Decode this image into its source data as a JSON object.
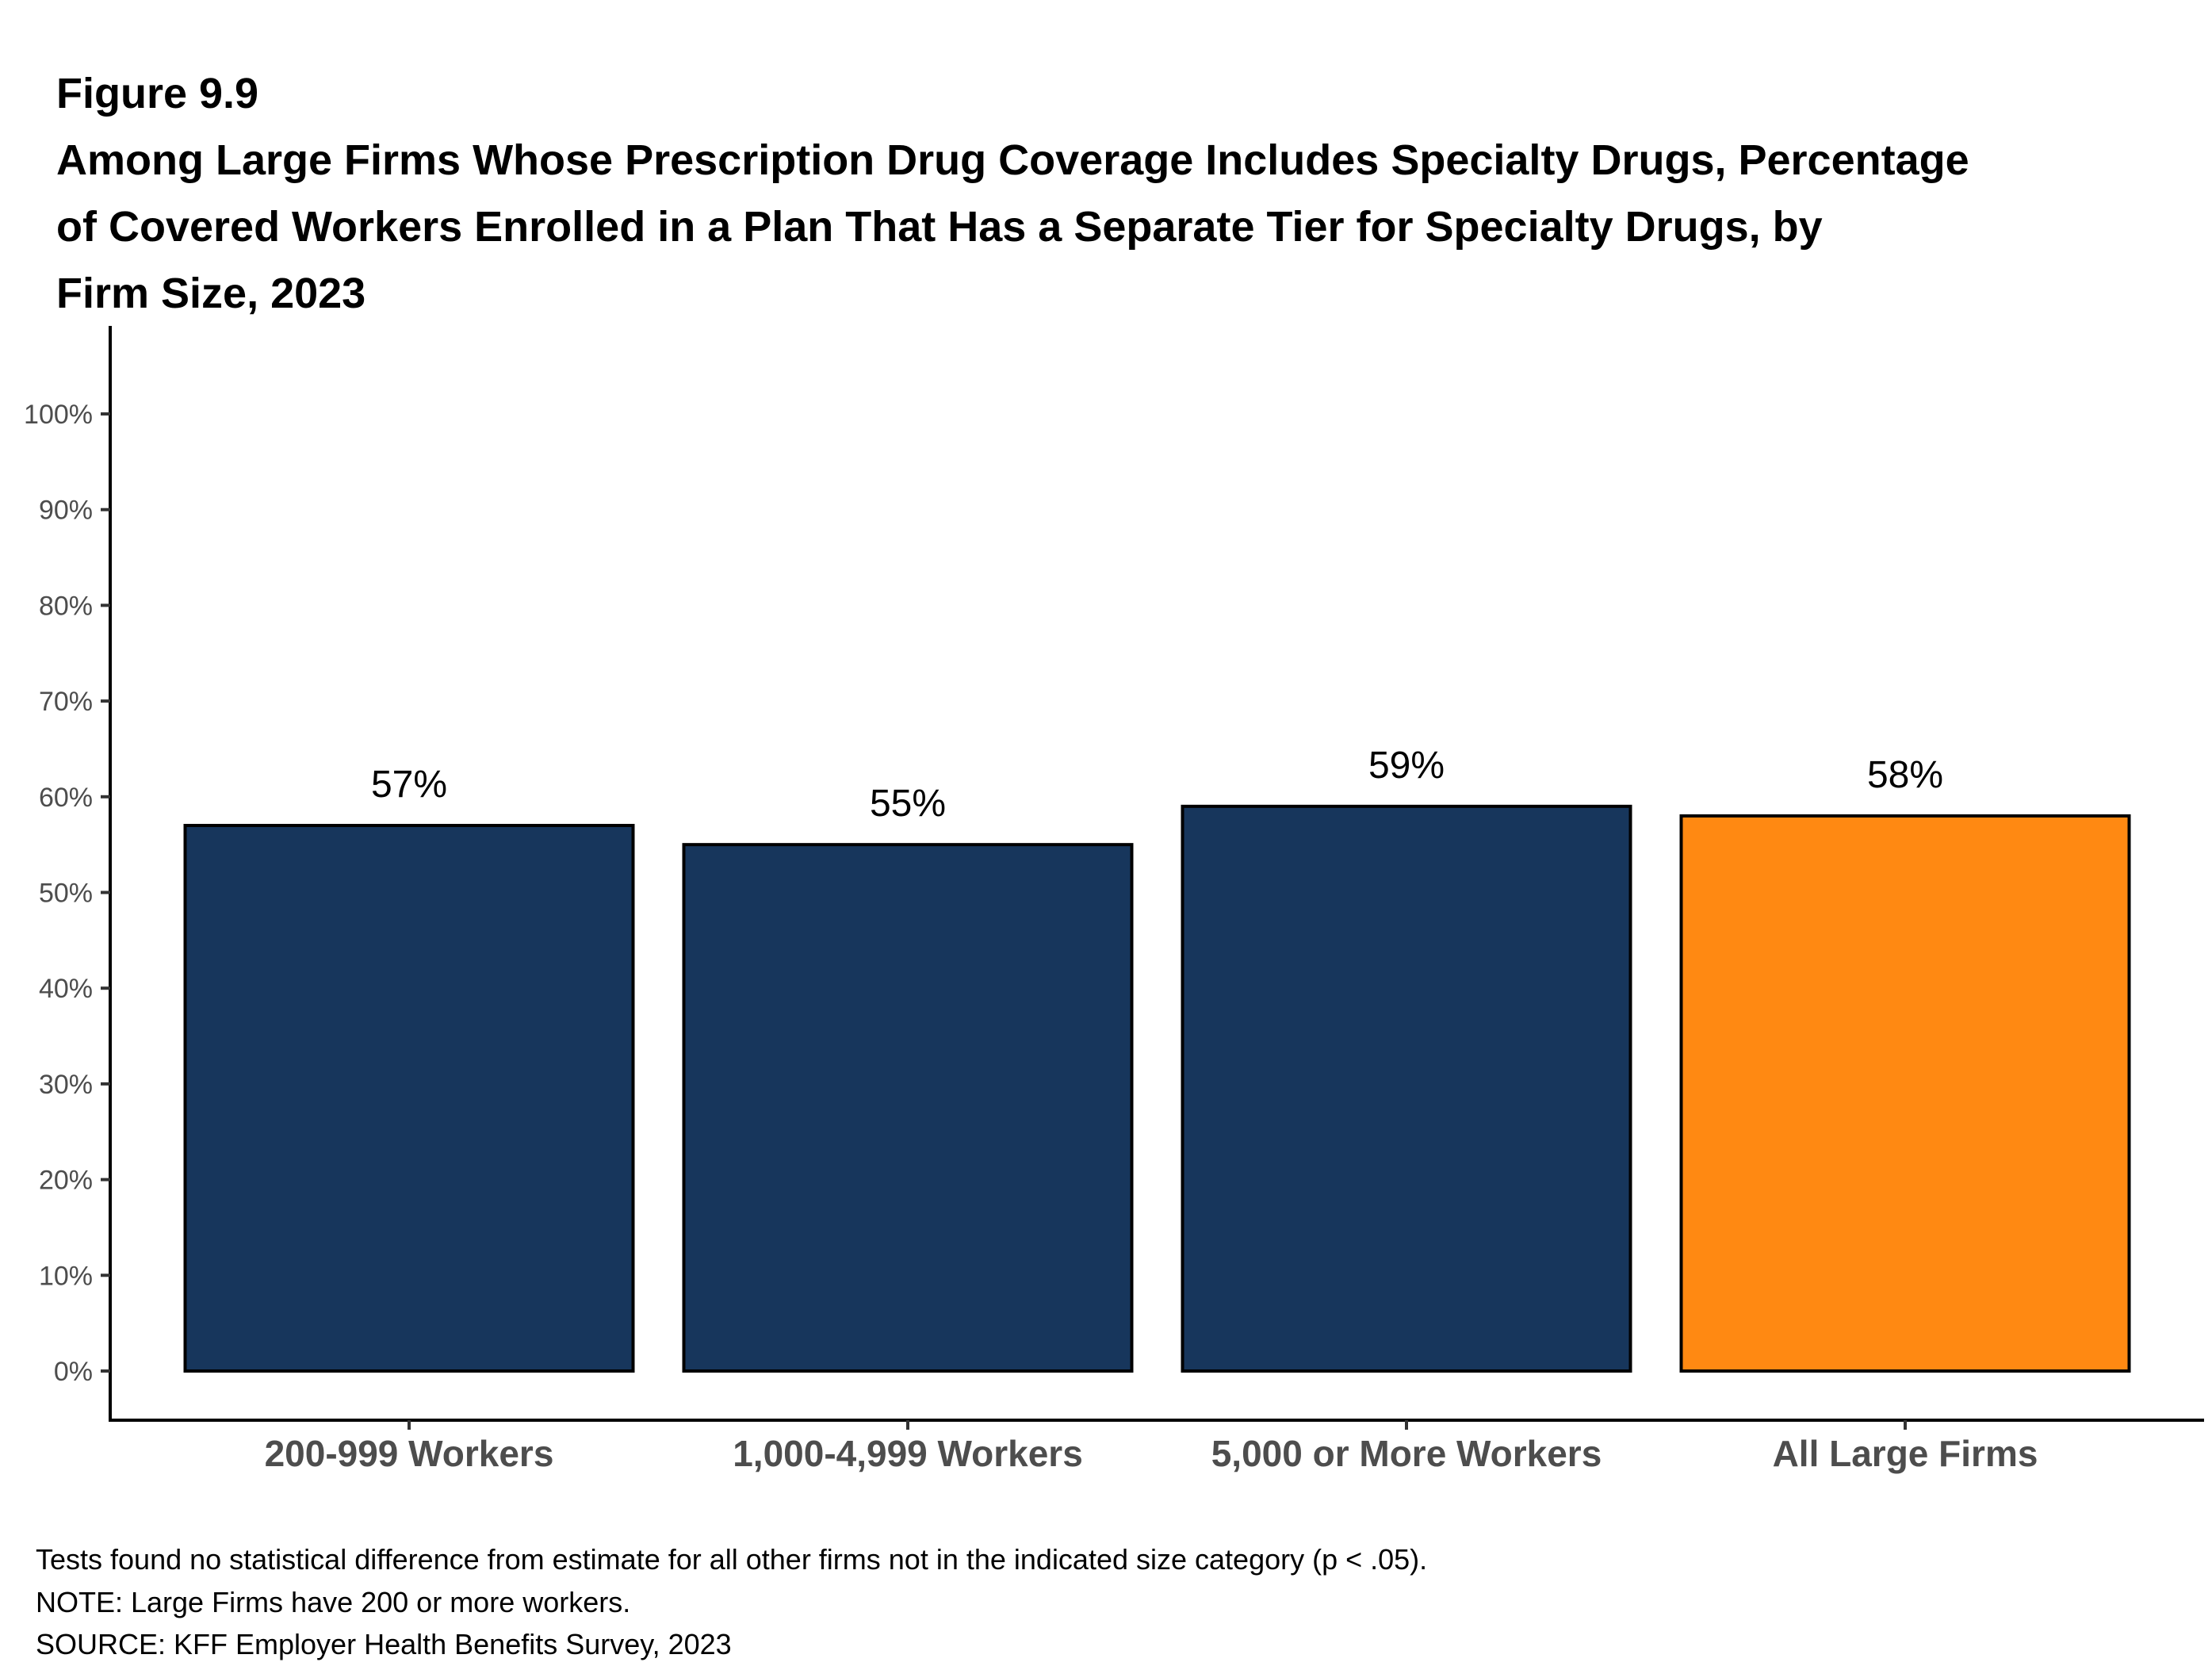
{
  "figure_label": "Figure 9.9",
  "title_lines": [
    "Among Large Firms Whose Prescription Drug Coverage Includes Specialty Drugs, Percentage",
    "of Covered Workers Enrolled in a Plan That Has a Separate Tier for Specialty Drugs, by",
    "Firm Size, 2023"
  ],
  "chart_data": {
    "type": "bar",
    "title": "Among Large Firms Whose Prescription Drug Coverage Includes Specialty Drugs, Percentage of Covered Workers Enrolled in a Plan That Has a Separate Tier for Specialty Drugs, by Firm Size, 2023",
    "categories": [
      "200-999 Workers",
      "1,000-4,999 Workers",
      "5,000 or More Workers",
      "All Large Firms"
    ],
    "values": [
      57,
      55,
      59,
      58
    ],
    "value_labels": [
      "57%",
      "55%",
      "59%",
      "58%"
    ],
    "colors": [
      "#17365C",
      "#17365C",
      "#17365C",
      "#FF8912"
    ],
    "xlabel": "",
    "ylabel": "",
    "ylim": [
      0,
      100
    ],
    "yticks": [
      0,
      10,
      20,
      30,
      40,
      50,
      60,
      70,
      80,
      90,
      100
    ],
    "ytick_labels": [
      "0%",
      "10%",
      "20%",
      "30%",
      "40%",
      "50%",
      "60%",
      "70%",
      "80%",
      "90%",
      "100%"
    ],
    "grid": false,
    "legend": "none"
  },
  "notes": [
    "Tests found no statistical difference from estimate for all other firms not in the indicated size category (p < .05).",
    "NOTE: Large Firms have 200 or more workers.",
    "SOURCE: KFF Employer Health Benefits Survey, 2023"
  ]
}
